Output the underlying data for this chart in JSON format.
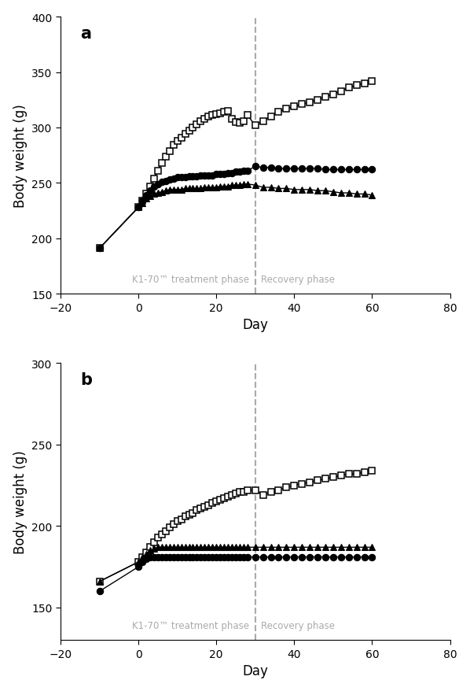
{
  "panel_a": {
    "title": "a",
    "ylim": [
      150,
      400
    ],
    "yticks": [
      150,
      200,
      250,
      300,
      350,
      400
    ],
    "ylabel": "Body weight (g)",
    "xlabel": "Day",
    "xlim": [
      -20,
      80
    ],
    "xticks": [
      -20,
      0,
      20,
      40,
      60,
      80
    ],
    "vline": 30,
    "treatment_label": "K1-70™ treatment phase",
    "recovery_label": "Recovery phase",
    "square_days": [
      -10,
      0,
      1,
      2,
      3,
      4,
      5,
      6,
      7,
      8,
      9,
      10,
      11,
      12,
      13,
      14,
      15,
      16,
      17,
      18,
      19,
      20,
      21,
      22,
      23,
      24,
      25,
      26,
      27,
      28,
      30,
      32,
      34,
      36,
      38,
      40,
      42,
      44,
      46,
      48,
      50,
      52,
      54,
      56,
      58,
      60
    ],
    "square_vals": [
      191,
      228,
      234,
      240,
      247,
      254,
      261,
      268,
      274,
      279,
      284,
      288,
      291,
      294,
      297,
      300,
      303,
      306,
      308,
      310,
      311,
      312,
      313,
      314,
      315,
      308,
      305,
      304,
      306,
      311,
      302,
      306,
      310,
      314,
      317,
      319,
      321,
      323,
      325,
      328,
      330,
      333,
      336,
      338,
      340,
      342
    ],
    "circle_days": [
      -10,
      0,
      1,
      2,
      3,
      4,
      5,
      6,
      7,
      8,
      9,
      10,
      11,
      12,
      13,
      14,
      15,
      16,
      17,
      18,
      19,
      20,
      21,
      22,
      23,
      24,
      25,
      26,
      27,
      28,
      30,
      32,
      34,
      36,
      38,
      40,
      42,
      44,
      46,
      48,
      50,
      52,
      54,
      56,
      58,
      60
    ],
    "circle_vals": [
      191,
      228,
      234,
      239,
      243,
      247,
      249,
      251,
      252,
      253,
      254,
      255,
      255,
      255,
      256,
      256,
      256,
      257,
      257,
      257,
      257,
      258,
      258,
      258,
      259,
      259,
      260,
      260,
      261,
      261,
      265,
      264,
      264,
      263,
      263,
      263,
      263,
      263,
      263,
      262,
      262,
      262,
      262,
      262,
      262,
      262
    ],
    "triangle_days": [
      -10,
      0,
      1,
      2,
      3,
      4,
      5,
      6,
      7,
      8,
      9,
      10,
      11,
      12,
      13,
      14,
      15,
      16,
      17,
      18,
      19,
      20,
      21,
      22,
      23,
      24,
      25,
      26,
      27,
      28,
      30,
      32,
      34,
      36,
      38,
      40,
      42,
      44,
      46,
      48,
      50,
      52,
      54,
      56,
      58,
      60
    ],
    "triangle_vals": [
      191,
      228,
      232,
      236,
      238,
      240,
      241,
      242,
      243,
      244,
      244,
      244,
      244,
      245,
      245,
      245,
      245,
      245,
      246,
      246,
      246,
      246,
      247,
      247,
      247,
      248,
      248,
      248,
      249,
      249,
      248,
      246,
      246,
      245,
      245,
      244,
      244,
      244,
      243,
      243,
      242,
      241,
      241,
      240,
      240,
      239
    ]
  },
  "panel_b": {
    "title": "b",
    "ylim": [
      130,
      300
    ],
    "yticks": [
      150,
      200,
      250,
      300
    ],
    "ylabel": "Body weight (g)",
    "xlabel": "Day",
    "xlim": [
      -20,
      80
    ],
    "xticks": [
      -20,
      0,
      20,
      40,
      60,
      80
    ],
    "vline": 30,
    "treatment_label": "K1-70™ treatment phase",
    "recovery_label": "Recovery phase",
    "square_days": [
      -10,
      0,
      1,
      2,
      3,
      4,
      5,
      6,
      7,
      8,
      9,
      10,
      11,
      12,
      13,
      14,
      15,
      16,
      17,
      18,
      19,
      20,
      21,
      22,
      23,
      24,
      25,
      26,
      27,
      28,
      30,
      32,
      34,
      36,
      38,
      40,
      42,
      44,
      46,
      48,
      50,
      52,
      54,
      56,
      58,
      60
    ],
    "square_vals": [
      166,
      178,
      181,
      184,
      187,
      190,
      193,
      195,
      197,
      199,
      201,
      203,
      204,
      206,
      207,
      208,
      210,
      211,
      212,
      213,
      214,
      215,
      216,
      217,
      218,
      219,
      220,
      221,
      221,
      222,
      222,
      219,
      221,
      222,
      224,
      225,
      226,
      227,
      228,
      229,
      230,
      231,
      232,
      232,
      233,
      234
    ],
    "circle_days": [
      -10,
      0,
      1,
      2,
      3,
      4,
      5,
      6,
      7,
      8,
      9,
      10,
      11,
      12,
      13,
      14,
      15,
      16,
      17,
      18,
      19,
      20,
      21,
      22,
      23,
      24,
      25,
      26,
      27,
      28,
      30,
      32,
      34,
      36,
      38,
      40,
      42,
      44,
      46,
      48,
      50,
      52,
      54,
      56,
      58,
      60
    ],
    "circle_vals": [
      160,
      175,
      178,
      180,
      181,
      181,
      181,
      181,
      181,
      181,
      181,
      181,
      181,
      181,
      181,
      181,
      181,
      181,
      181,
      181,
      181,
      181,
      181,
      181,
      181,
      181,
      181,
      181,
      181,
      181,
      181,
      181,
      181,
      181,
      181,
      181,
      181,
      181,
      181,
      181,
      181,
      181,
      181,
      181,
      181,
      181
    ],
    "triangle_days": [
      -10,
      0,
      1,
      2,
      3,
      4,
      5,
      6,
      7,
      8,
      9,
      10,
      11,
      12,
      13,
      14,
      15,
      16,
      17,
      18,
      19,
      20,
      21,
      22,
      23,
      24,
      25,
      26,
      27,
      28,
      30,
      32,
      34,
      36,
      38,
      40,
      42,
      44,
      46,
      48,
      50,
      52,
      54,
      56,
      58,
      60
    ],
    "triangle_vals": [
      166,
      178,
      181,
      183,
      185,
      186,
      187,
      187,
      187,
      187,
      187,
      187,
      187,
      187,
      187,
      187,
      187,
      187,
      187,
      187,
      187,
      187,
      187,
      187,
      187,
      187,
      187,
      187,
      187,
      187,
      187,
      187,
      187,
      187,
      187,
      187,
      187,
      187,
      187,
      187,
      187,
      187,
      187,
      187,
      187,
      187
    ]
  },
  "line_color": "#000000",
  "vline_color": "#aaaaaa",
  "label_color": "#aaaaaa",
  "marker_size": 5.5,
  "linewidth": 1.0
}
